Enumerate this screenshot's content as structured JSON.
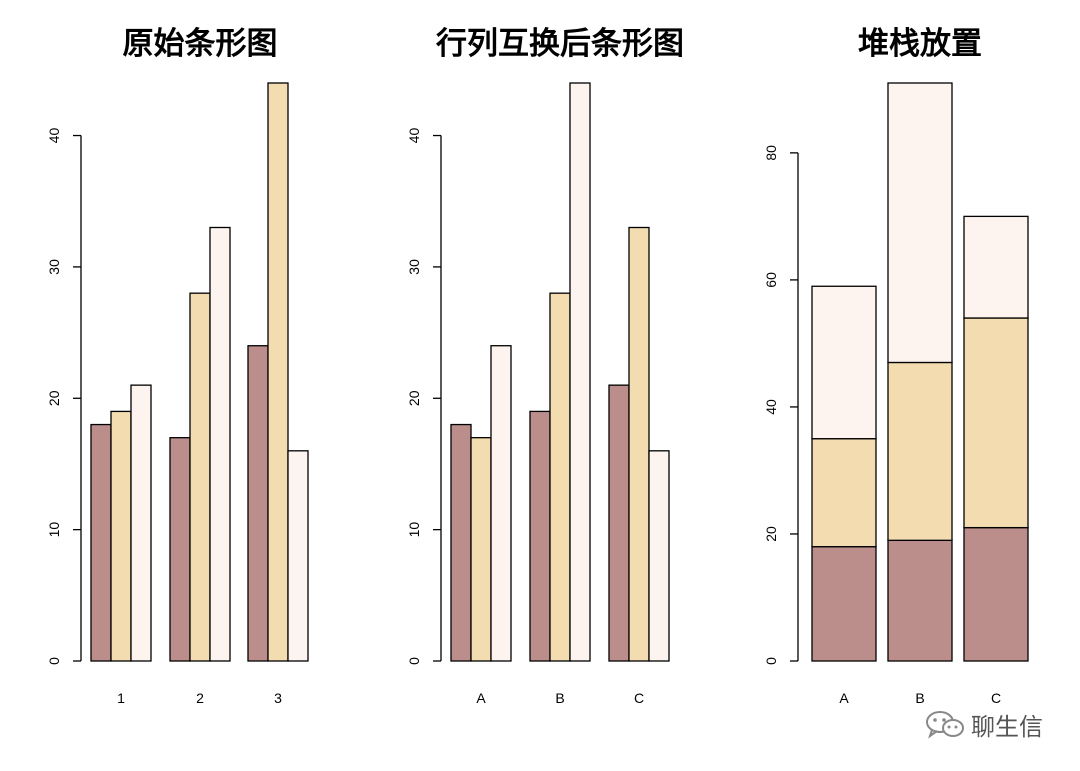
{
  "colors": {
    "dark": "#bb8d8b",
    "mid": "#f3dcb0",
    "light": "#fdf3ef"
  },
  "chart_data": [
    {
      "type": "bar",
      "mode": "grouped",
      "title": "原始条形图",
      "categories": [
        "1",
        "2",
        "3"
      ],
      "series": [
        {
          "values": [
            18,
            17,
            24
          ],
          "color": "#bb8d8b"
        },
        {
          "values": [
            19,
            28,
            44
          ],
          "color": "#f3dcb0"
        },
        {
          "values": [
            21,
            33,
            16
          ],
          "color": "#fdf3ef"
        }
      ],
      "yticks": [
        0,
        10,
        20,
        30,
        40
      ],
      "ylim": [
        0,
        44
      ],
      "xlabel": "",
      "ylabel": ""
    },
    {
      "type": "bar",
      "mode": "grouped",
      "title": "行列互换后条形图",
      "categories": [
        "A",
        "B",
        "C"
      ],
      "series": [
        {
          "values": [
            18,
            19,
            21
          ],
          "color": "#bb8d8b"
        },
        {
          "values": [
            17,
            28,
            33
          ],
          "color": "#f3dcb0"
        },
        {
          "values": [
            24,
            44,
            16
          ],
          "color": "#fdf3ef"
        }
      ],
      "yticks": [
        0,
        10,
        20,
        30,
        40
      ],
      "ylim": [
        0,
        44
      ],
      "xlabel": "",
      "ylabel": ""
    },
    {
      "type": "bar",
      "mode": "stacked",
      "title": "堆栈放置",
      "categories": [
        "A",
        "B",
        "C"
      ],
      "series": [
        {
          "values": [
            18,
            19,
            21
          ],
          "color": "#bb8d8b"
        },
        {
          "values": [
            17,
            28,
            33
          ],
          "color": "#f3dcb0"
        },
        {
          "values": [
            24,
            44,
            16
          ],
          "color": "#fdf3ef"
        }
      ],
      "yticks": [
        0,
        20,
        40,
        60,
        80
      ],
      "ylim": [
        0,
        91
      ],
      "xlabel": "",
      "ylabel": ""
    }
  ],
  "watermark": {
    "text": "聊生信",
    "icon": "wechat-icon"
  }
}
